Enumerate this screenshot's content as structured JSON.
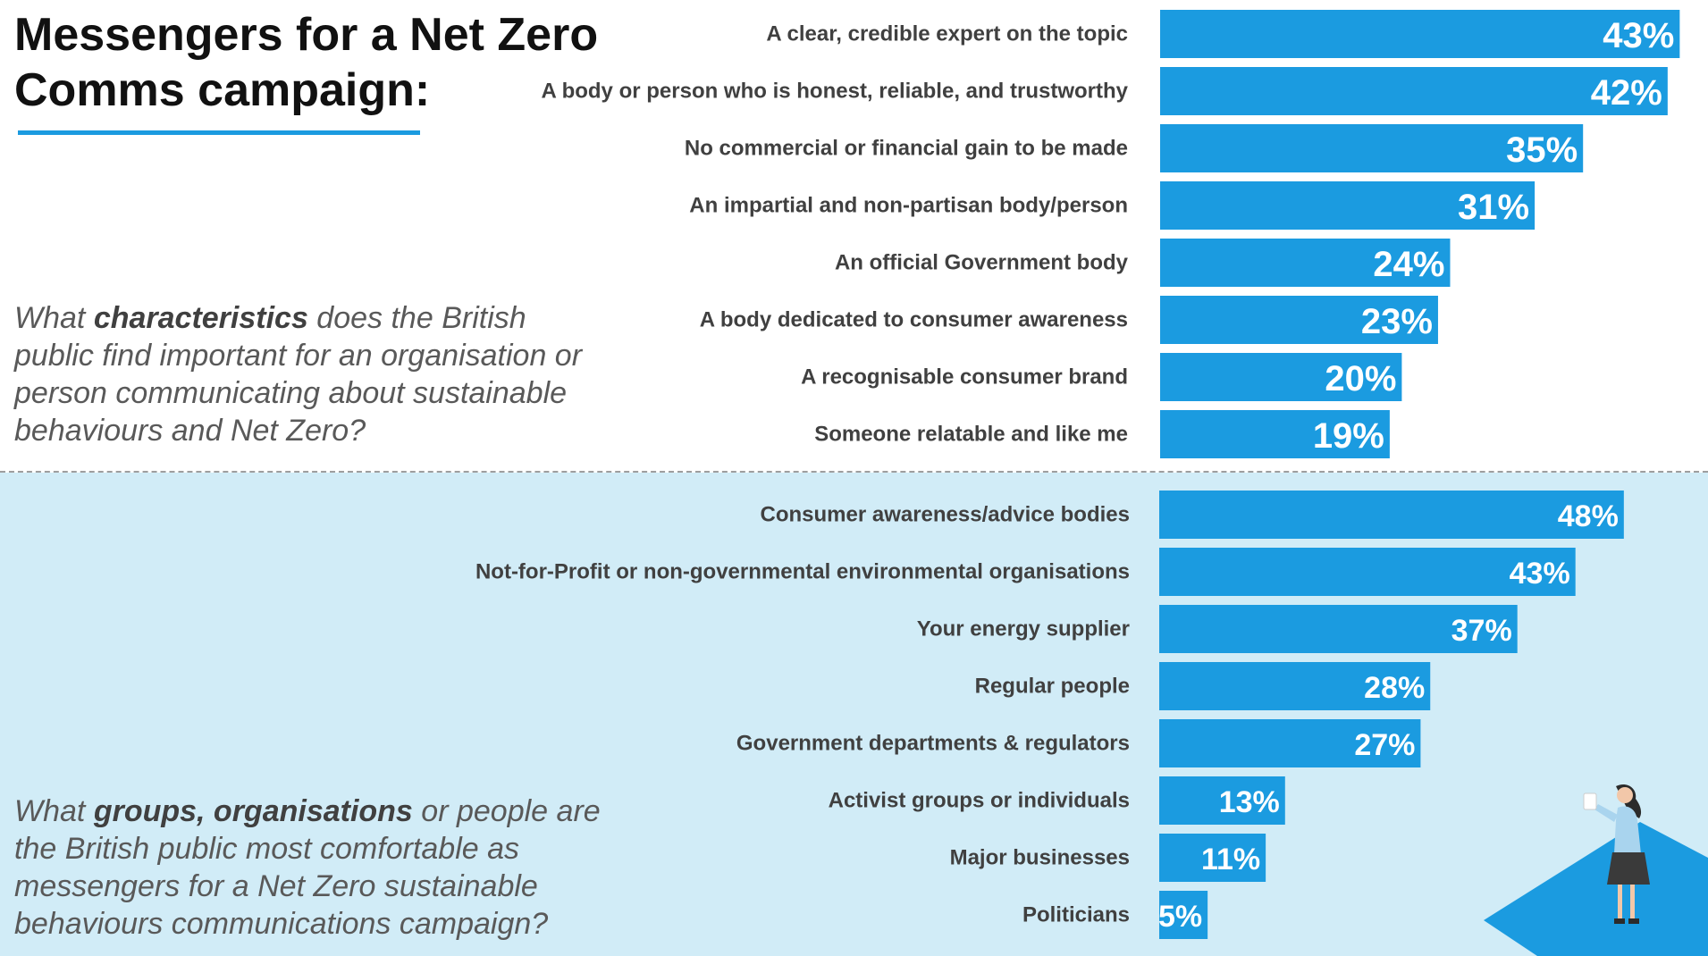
{
  "title": "Messengers for a Net Zero Comms campaign:",
  "question1": {
    "pre": "What ",
    "bold": "characteristics",
    "post": " does the British public find important for an organisation or person communicating about sustainable behaviours and Net Zero?"
  },
  "question2": {
    "pre": "What ",
    "bold": "groups, organisations",
    "post": " or people are the British public most comfortable as messengers for a Net Zero sustainable behaviours communications campaign?"
  },
  "colors": {
    "bar": "#1b9be0",
    "lower_background": "#d1ecf7",
    "accent": "#1b9be0"
  },
  "chart_data": [
    {
      "type": "bar",
      "orientation": "horizontal",
      "categories": [
        "A clear, credible expert on the topic",
        "A body or person who is honest, reliable, and trustworthy",
        "No commercial or financial gain to be made",
        "An impartial and non-partisan body/person",
        "An official Government body",
        "A body dedicated to consumer awareness",
        "A recognisable consumer brand",
        "Someone relatable and like me"
      ],
      "values": [
        43,
        42,
        35,
        31,
        24,
        23,
        20,
        19
      ],
      "value_labels": [
        "43%",
        "42%",
        "35%",
        "31%",
        "24%",
        "23%",
        "20%",
        "19%"
      ],
      "unit": "%"
    },
    {
      "type": "bar",
      "orientation": "horizontal",
      "categories": [
        "Consumer awareness/advice bodies",
        "Not-for-Profit or non-governmental environmental organisations",
        "Your energy supplier",
        "Regular people",
        "Government departments & regulators",
        "Activist groups or individuals",
        "Major businesses",
        "Politicians"
      ],
      "values": [
        48,
        43,
        37,
        28,
        27,
        13,
        11,
        5
      ],
      "value_labels": [
        "48%",
        "43%",
        "37%",
        "28%",
        "27%",
        "13%",
        "11%",
        "5%"
      ],
      "unit": "%"
    }
  ]
}
